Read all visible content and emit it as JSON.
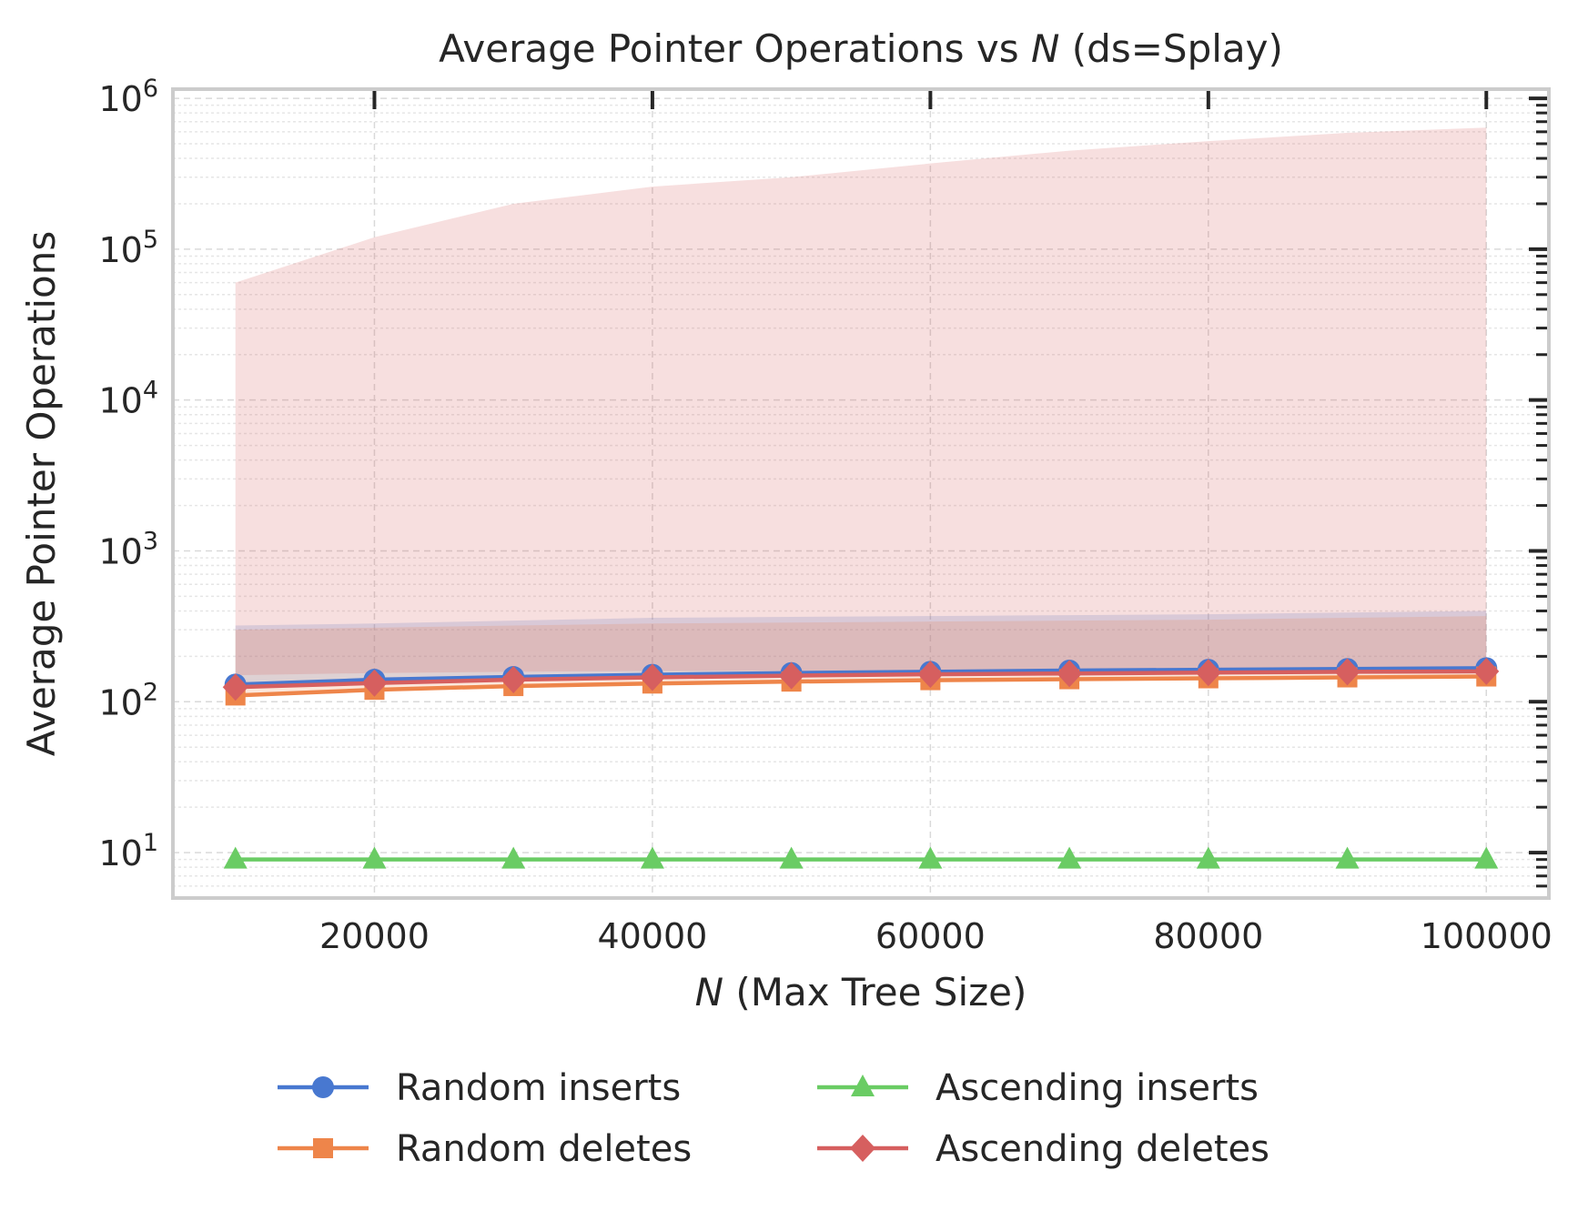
{
  "chart_data": {
    "type": "line",
    "title_prefix": "Average Pointer Operations vs ",
    "title_var": "N",
    "title_suffix": " (ds=Splay)",
    "xlabel_var": "N",
    "xlabel_rest": " (Max Tree Size)",
    "ylabel": "Average Pointer Operations",
    "y_scale": "log",
    "ylim": [
      5,
      1150000
    ],
    "xlim": [
      5500,
      104500
    ],
    "x_ticks": [
      20000,
      40000,
      60000,
      80000,
      100000
    ],
    "x_tick_labels": [
      "20000",
      "40000",
      "60000",
      "80000",
      "100000"
    ],
    "y_ticks": [
      10,
      100,
      1000,
      10000,
      100000,
      1000000
    ],
    "y_tick_bases": [
      "10",
      "10",
      "10",
      "10",
      "10",
      "10"
    ],
    "y_tick_exps": [
      "1",
      "2",
      "3",
      "4",
      "5",
      "6"
    ],
    "grid": true,
    "legend_position": "bottom",
    "x": [
      10000,
      20000,
      30000,
      40000,
      50000,
      60000,
      70000,
      80000,
      90000,
      100000
    ],
    "series": [
      {
        "name": "Random inserts",
        "color": "#4878d0",
        "marker": "circle",
        "values": [
          130,
          140,
          146,
          151,
          155,
          158,
          161,
          163,
          165,
          167
        ],
        "band_upper": [
          320,
          330,
          345,
          360,
          365,
          370,
          375,
          380,
          390,
          400
        ],
        "band_lower": [
          130,
          140,
          146,
          151,
          155,
          158,
          161,
          163,
          165,
          167
        ]
      },
      {
        "name": "Random deletes",
        "color": "#ee854a",
        "marker": "square",
        "values": [
          110,
          120,
          127,
          132,
          136,
          139,
          141,
          143,
          145,
          147
        ],
        "band_upper": [
          300,
          310,
          320,
          330,
          335,
          340,
          345,
          350,
          360,
          370
        ],
        "band_lower": [
          110,
          120,
          127,
          132,
          136,
          139,
          141,
          143,
          145,
          147
        ]
      },
      {
        "name": "Ascending inserts",
        "color": "#6acc64",
        "marker": "triangle",
        "values": [
          9,
          9,
          9,
          9,
          9,
          9,
          9,
          9,
          9,
          9
        ]
      },
      {
        "name": "Ascending deletes",
        "color": "#d65f5f",
        "marker": "diamond",
        "values": [
          125,
          133,
          140,
          145,
          149,
          152,
          154,
          156,
          158,
          159
        ],
        "band_upper": [
          60000,
          120000,
          200000,
          260000,
          300000,
          370000,
          450000,
          520000,
          590000,
          640000
        ],
        "band_lower": [
          150,
          155,
          158,
          160,
          160,
          162,
          163,
          164,
          165,
          165
        ]
      }
    ]
  }
}
